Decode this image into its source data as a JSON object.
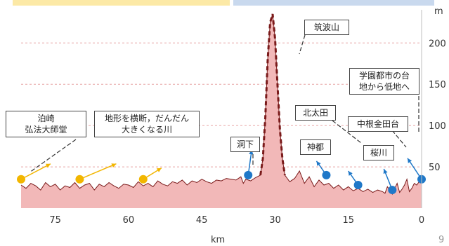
{
  "chart_data": {
    "type": "area",
    "x_unit": "km",
    "y_unit": "m",
    "x_ticks": [
      75,
      60,
      45,
      30,
      15,
      0
    ],
    "y_ticks": [
      50,
      100,
      150,
      200
    ],
    "xlim": [
      82,
      0
    ],
    "ylim": [
      0,
      235
    ],
    "grid": "horizontal dashed",
    "page_number": "9",
    "colors": {
      "fill": "#f2b8b8",
      "ridge": "#7a1a1a",
      "gridline": "#e7a3a3",
      "arrow_yellow": "#f2b600",
      "arrow_blue": "#1f78c8",
      "top_band_left": "#fce9a6",
      "top_band_right": "#c9d9ee"
    },
    "series": [
      {
        "x": [
          82,
          81,
          80,
          79,
          78,
          77,
          76,
          75,
          74,
          73,
          72,
          71,
          70,
          69,
          68,
          67,
          66,
          65,
          64,
          63,
          62,
          61,
          60,
          59,
          58,
          57,
          56,
          55,
          54,
          53,
          52,
          51,
          50,
          49,
          48,
          47,
          46,
          45,
          44,
          43,
          42,
          41,
          40,
          39,
          38,
          37,
          36.5,
          36,
          35,
          34,
          33,
          32.5,
          32,
          31.5,
          31,
          30.5,
          30,
          29.5,
          29,
          28.5,
          28,
          27,
          26,
          25,
          24,
          23,
          22,
          21,
          20,
          19,
          18,
          17,
          16,
          15,
          14,
          13,
          12,
          11,
          10,
          9,
          8,
          7.5,
          7,
          6.5,
          6,
          5.5,
          5,
          4.5,
          4,
          3.5,
          3,
          2.5,
          2,
          1.5,
          1,
          0.5,
          0
        ],
        "y": [
          28,
          24,
          30,
          27,
          22,
          31,
          26,
          29,
          22,
          27,
          25,
          31,
          24,
          28,
          30,
          22,
          29,
          26,
          31,
          27,
          24,
          29,
          28,
          25,
          32,
          27,
          30,
          26,
          33,
          29,
          27,
          32,
          30,
          34,
          28,
          33,
          31,
          35,
          32,
          30,
          34,
          33,
          36,
          35,
          34,
          38,
          30,
          35,
          33,
          37,
          40,
          60,
          110,
          180,
          225,
          235,
          205,
          150,
          95,
          60,
          40,
          32,
          36,
          45,
          30,
          38,
          26,
          34,
          28,
          30,
          24,
          28,
          22,
          26,
          21,
          24,
          20,
          23,
          19,
          22,
          20,
          18,
          26,
          22,
          17,
          24,
          30,
          19,
          23,
          28,
          35,
          20,
          24,
          30,
          28,
          32,
          35
        ]
      }
    ],
    "landmarks": [
      {
        "label": "泊崎弘法大師堂",
        "lines": [
          "泊崎",
          "弘法大師堂"
        ],
        "x_km": 82,
        "elevation_m": 35,
        "arrow": "yellow"
      },
      {
        "label": "地形を横断，だんだん大きくなる川",
        "lines": [
          "地形を横断，だんだん",
          "大きくなる川"
        ],
        "points": [
          {
            "x_km": 70,
            "elevation_m": 35
          },
          {
            "x_km": 57,
            "elevation_m": 35
          }
        ],
        "arrow": "yellow"
      },
      {
        "label": "洞下",
        "lines": [
          "洞下"
        ],
        "x_km": 35.5,
        "elevation_m": 40,
        "arrow": "blue"
      },
      {
        "label": "筑波山",
        "lines": [
          "筑波山"
        ],
        "x_km": 30.5,
        "elevation_m": 235
      },
      {
        "label": "神都",
        "lines": [
          "神都"
        ],
        "x_km": 19.5,
        "elevation_m": 40,
        "arrow": "blue"
      },
      {
        "label": "北太田",
        "lines": [
          "北太田"
        ],
        "x_km": 13,
        "elevation_m": 28,
        "arrow": "blue"
      },
      {
        "label": "中根金田台",
        "lines": [
          "中根金田台"
        ],
        "x_km": 4.5,
        "elevation_m": 35
      },
      {
        "label": "桜川",
        "lines": [
          "桜川"
        ],
        "x_km": 6,
        "elevation_m": 22,
        "arrow": "blue"
      },
      {
        "label": "学園都市の台地から低地へ",
        "lines": [
          "学園都市の台",
          "地から低地へ"
        ],
        "x_km": 0,
        "elevation_m": 35,
        "arrow": "blue"
      }
    ]
  }
}
